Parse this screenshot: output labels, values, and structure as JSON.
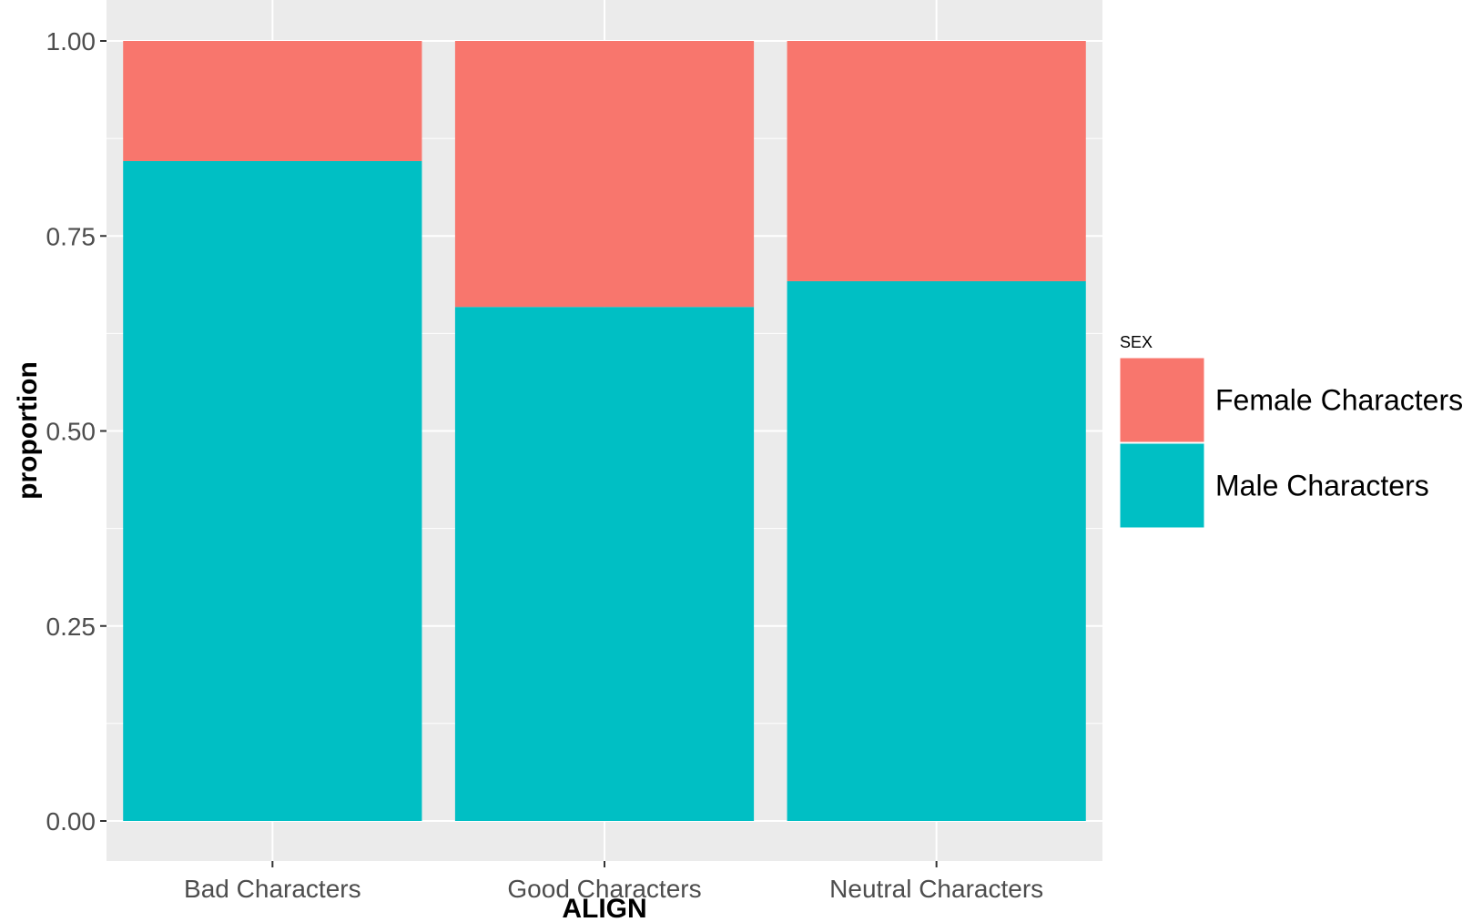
{
  "chart_data": {
    "type": "bar",
    "stacked": true,
    "title": "",
    "xlabel": "ALIGN",
    "ylabel": "proportion",
    "ylim": [
      0,
      1
    ],
    "yticks": [
      0,
      0.25,
      0.5,
      0.75,
      1
    ],
    "ytick_labels": [
      "0.00",
      "0.25",
      "0.50",
      "0.75",
      "1.00"
    ],
    "categories": [
      "Bad Characters",
      "Good Characters",
      "Neutral Characters"
    ],
    "series": [
      {
        "name": "Male Characters",
        "values": [
          0.846,
          0.659,
          0.692
        ],
        "color": "#00BFC4"
      },
      {
        "name": "Female Characters",
        "values": [
          0.154,
          0.341,
          0.308
        ],
        "color": "#F8766D"
      }
    ],
    "legend": {
      "title": "SEX",
      "position": "right",
      "entries": [
        "Female Characters",
        "Male Characters"
      ]
    },
    "grid": true,
    "panel_background": "#EBEBEB",
    "grid_color": "#FFFFFF"
  }
}
